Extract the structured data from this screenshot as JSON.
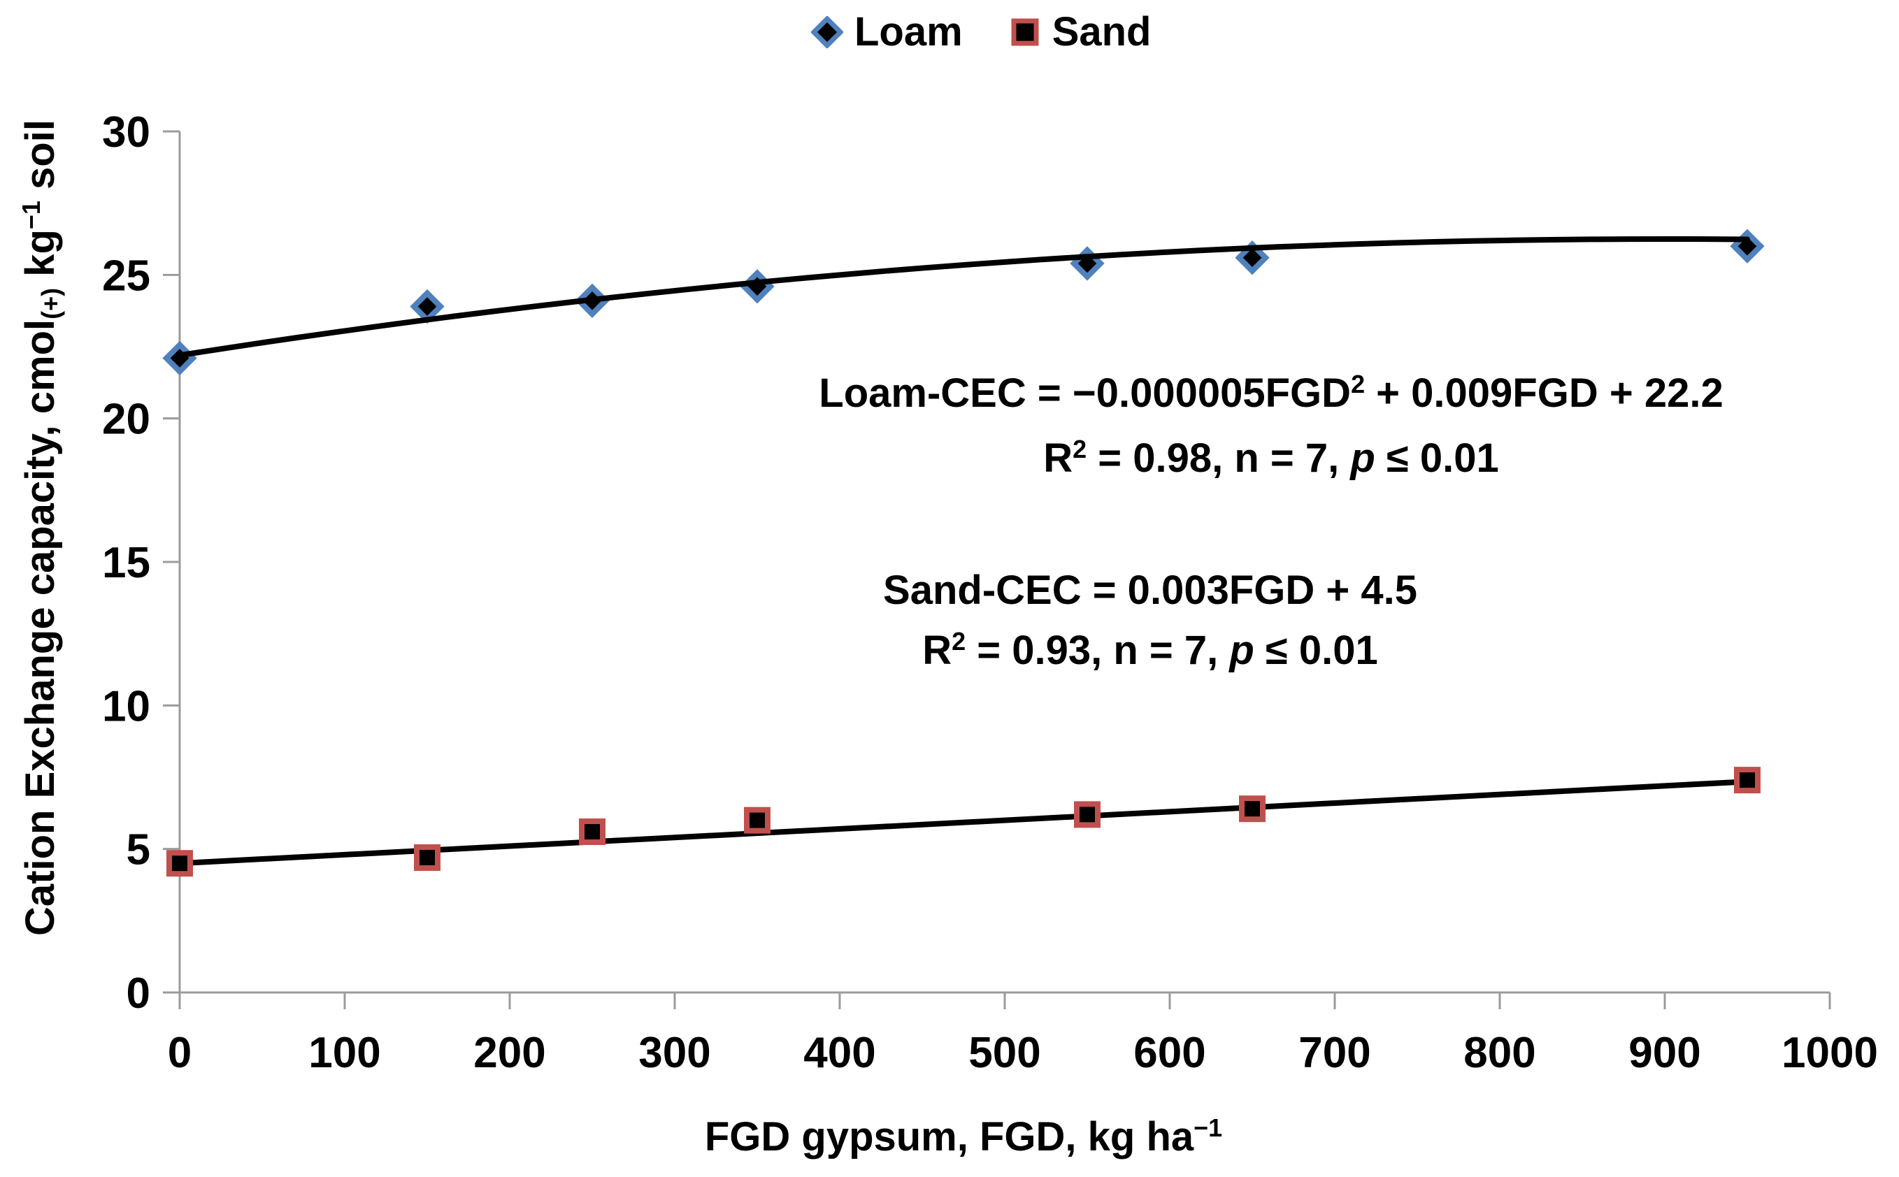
{
  "legend": {
    "items": [
      {
        "label": "Loam",
        "marker": "diamond",
        "marker_fill": "#000000",
        "marker_stroke": "#4F81BD"
      },
      {
        "label": "Sand",
        "marker": "square",
        "marker_fill": "#000000",
        "marker_stroke": "#C0504D"
      }
    ]
  },
  "y_axis_title": {
    "pre": "Cation Exchange capacity, cmol",
    "sub": "(+)",
    "mid": " kg",
    "sup": "−1",
    "post": " soil"
  },
  "x_axis_title": {
    "pre": "FGD gypsum, FGD, kg ha",
    "sup": "−1"
  },
  "annotations": {
    "loam": {
      "eq_pre": "Loam-CEC = −0.000005FGD",
      "eq_sup": "2",
      "eq_post": " + 0.009FGD + 22.2",
      "stats_r": "R",
      "stats_r_sup": "2",
      "stats_mid": " = 0.98, n = 7, ",
      "stats_p": "p",
      "stats_post": " ≤ 0.01"
    },
    "sand": {
      "eq": "Sand-CEC = 0.003FGD + 4.5",
      "stats_r": "R",
      "stats_r_sup": "2",
      "stats_mid": " = 0.93, n = 7, ",
      "stats_p": "p",
      "stats_post": " ≤ 0.01"
    }
  },
  "chart_data": {
    "type": "scatter",
    "title": "",
    "xlabel": "FGD gypsum, FGD, kg ha−1",
    "ylabel": "Cation Exchange capacity, cmol(+) kg−1 soil",
    "xlim": [
      0,
      1000
    ],
    "ylim": [
      0,
      30
    ],
    "xticks": [
      0,
      100,
      200,
      300,
      400,
      500,
      600,
      700,
      800,
      900,
      1000
    ],
    "yticks": [
      0,
      5,
      10,
      15,
      20,
      25,
      30
    ],
    "grid": false,
    "legend_position": "top-center",
    "x": [
      0,
      150,
      250,
      350,
      550,
      650,
      950
    ],
    "series": [
      {
        "name": "Loam",
        "marker": "diamond",
        "marker_fill": "#000000",
        "marker_stroke": "#4F81BD",
        "values": [
          22.1,
          23.9,
          24.1,
          24.6,
          25.4,
          25.6,
          26.0
        ],
        "trendline": {
          "kind": "quadratic",
          "coeffs": [
            -5e-06,
            0.009,
            22.2
          ],
          "x_start": 0,
          "x_end": 950,
          "color": "#000000"
        }
      },
      {
        "name": "Sand",
        "marker": "square",
        "marker_fill": "#000000",
        "marker_stroke": "#C0504D",
        "values": [
          4.5,
          4.7,
          5.6,
          6.0,
          6.2,
          6.4,
          7.4
        ],
        "trendline": {
          "kind": "linear",
          "coeffs": [
            0.003,
            4.5
          ],
          "x_start": 0,
          "x_end": 950,
          "color": "#000000"
        }
      }
    ],
    "axis_color": "#9B9B9B",
    "tick_label_color": "#000000"
  }
}
